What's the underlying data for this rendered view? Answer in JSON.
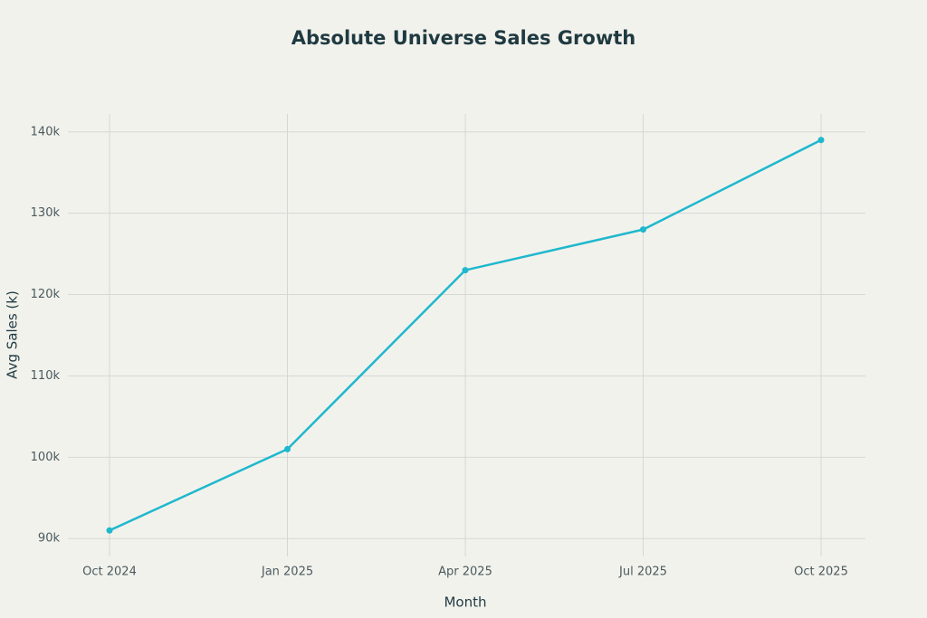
{
  "chart_data": {
    "type": "line",
    "title": "Absolute Universe Sales Growth",
    "x_label": "Month",
    "y_label": "Avg Sales (k)",
    "categories": [
      "Oct 2024",
      "Jan 2025",
      "Apr 2025",
      "Jul 2025",
      "Oct 2025"
    ],
    "values": [
      91000,
      101000,
      123000,
      128000,
      139000
    ],
    "color": "#1fb8cd",
    "ylim": [
      87800,
      142200
    ],
    "yticks": [
      {
        "value": 90000,
        "label": "90k"
      },
      {
        "value": 100000,
        "label": "100k"
      },
      {
        "value": 110000,
        "label": "110k"
      },
      {
        "value": 120000,
        "label": "120k"
      },
      {
        "value": 130000,
        "label": "130k"
      },
      {
        "value": 140000,
        "label": "140k"
      }
    ],
    "grid": true
  }
}
